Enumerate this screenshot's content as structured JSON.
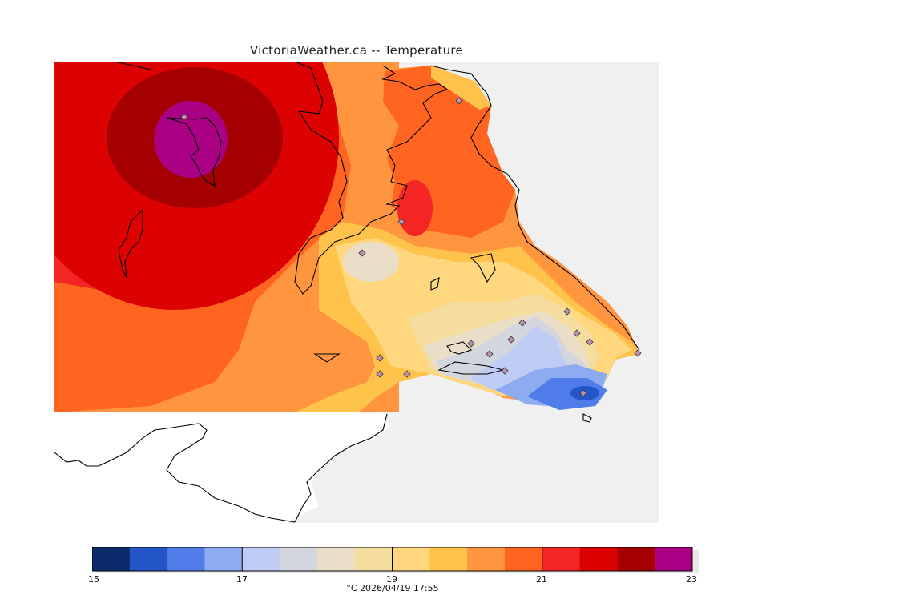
{
  "title": "VictoriaWeather.ca -- Temperature",
  "colorbar": {
    "colors": [
      "#0d2a6b",
      "#2456c8",
      "#4f7ce8",
      "#8eaaf0",
      "#bfccf3",
      "#d3d6df",
      "#ebdec8",
      "#f5dda0",
      "#ffd77e",
      "#ffc34c",
      "#ff963f",
      "#ff6520",
      "#f42525",
      "#dd0202",
      "#a50000",
      "#aa0084"
    ],
    "tick_labels": [
      "15",
      "17",
      "19",
      "21",
      "23"
    ]
  },
  "caption": "°C  2026/04/19 17:55",
  "stations_marker": "diamond-icon"
}
